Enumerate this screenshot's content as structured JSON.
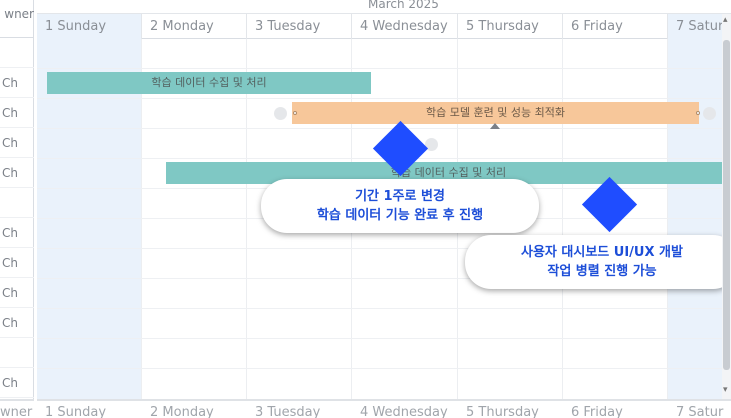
{
  "header": {
    "month": "March 2025",
    "owner_label": "wner",
    "days": [
      {
        "label": "1 Sunday",
        "weekend": true
      },
      {
        "label": "2 Monday",
        "weekend": false
      },
      {
        "label": "3 Tuesday",
        "weekend": false
      },
      {
        "label": "4 Wednesday",
        "weekend": false
      },
      {
        "label": "5 Thursday",
        "weekend": false
      },
      {
        "label": "6  Friday",
        "weekend": false
      },
      {
        "label": "7 Satur",
        "weekend": true
      }
    ]
  },
  "rows": [
    {
      "owner": ""
    },
    {
      "owner": "Ch"
    },
    {
      "owner": "Ch"
    },
    {
      "owner": "Ch"
    },
    {
      "owner": "Ch"
    },
    {
      "owner": ""
    },
    {
      "owner": "Ch"
    },
    {
      "owner": "Ch"
    },
    {
      "owner": "Ch"
    },
    {
      "owner": "Ch"
    },
    {
      "owner": ""
    },
    {
      "owner": "Ch"
    }
  ],
  "tasks": [
    {
      "label": "학습 데이터 수집 및 처리",
      "color": "#7fc8c4"
    },
    {
      "label": "학습 모델 훈련 및 성능 최적화",
      "color": "#f7c79a"
    },
    {
      "label": "학습 데이터 수집 및 처리",
      "color": "#7fc8c4"
    }
  ],
  "callouts": [
    {
      "line1": "기간 1주로 변경",
      "line2": "학습 데이터 기능 완료 후 진행",
      "color": "#1f4dff"
    },
    {
      "line1": "사용자 대시보드 UI/UX 개발",
      "line2": "작업 병렬 진행 가능",
      "color": "#1f4dff"
    }
  ],
  "footer": {
    "owner_label": "wner",
    "days": [
      "1 Sunday",
      "2 Monday",
      "3 Tuesday",
      "4 Wednesday",
      "5 Thursday",
      "6  Friday",
      "7 Satur"
    ]
  },
  "scrollbar": {
    "up_icon": "chevron-up-icon",
    "down_icon": "chevron-down-icon"
  }
}
